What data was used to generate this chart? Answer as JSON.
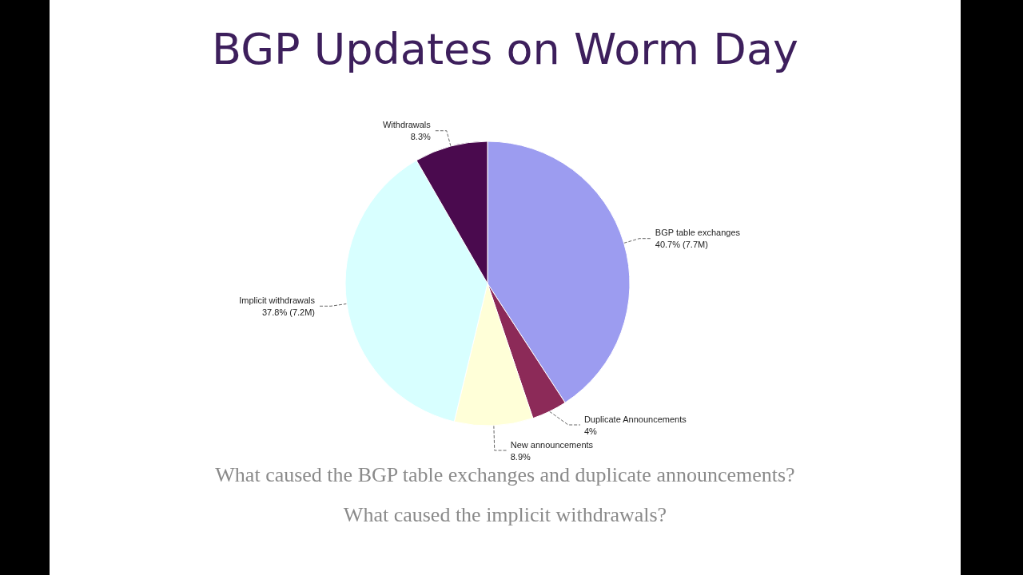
{
  "chart_data": {
    "type": "pie",
    "title": "BGP Updates on Worm Day",
    "categories": [
      "BGP table exchanges",
      "Duplicate Announcements",
      "New announcements",
      "Implicit withdrawals",
      "Withdrawals"
    ],
    "values": [
      40.7,
      4,
      8.9,
      37.8,
      8.3
    ],
    "value_labels": [
      "40.7% (7.7M)",
      "4%",
      "8.9%",
      "37.8% (7.2M)",
      "8.3%"
    ],
    "colors": [
      "#9c9cf0",
      "#8c2a58",
      "#ffffd8",
      "#d8ffff",
      "#4a0a4e"
    ],
    "annotations": [
      "What caused the BGP table exchanges and duplicate announcements?",
      "What caused the implicit withdrawals?"
    ]
  }
}
